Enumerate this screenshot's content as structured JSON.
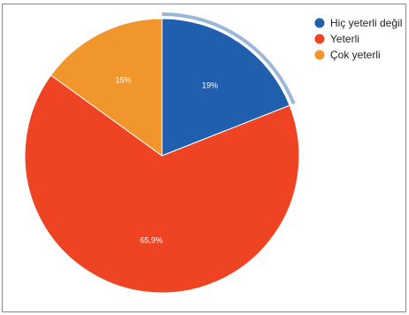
{
  "chart_data": {
    "type": "pie",
    "slices": [
      {
        "label": "Hiç yeterli değil",
        "value": 19,
        "display": "19%",
        "color": "#1f5fad",
        "selected": true
      },
      {
        "label": "Yeterli",
        "value": 65.9,
        "display": "65,9%",
        "color": "#ee4423",
        "selected": false
      },
      {
        "label": "Çok yeterli",
        "value": 15,
        "display": "15%",
        "color": "#f1962d",
        "selected": false
      }
    ],
    "legend_position": "top-right"
  }
}
